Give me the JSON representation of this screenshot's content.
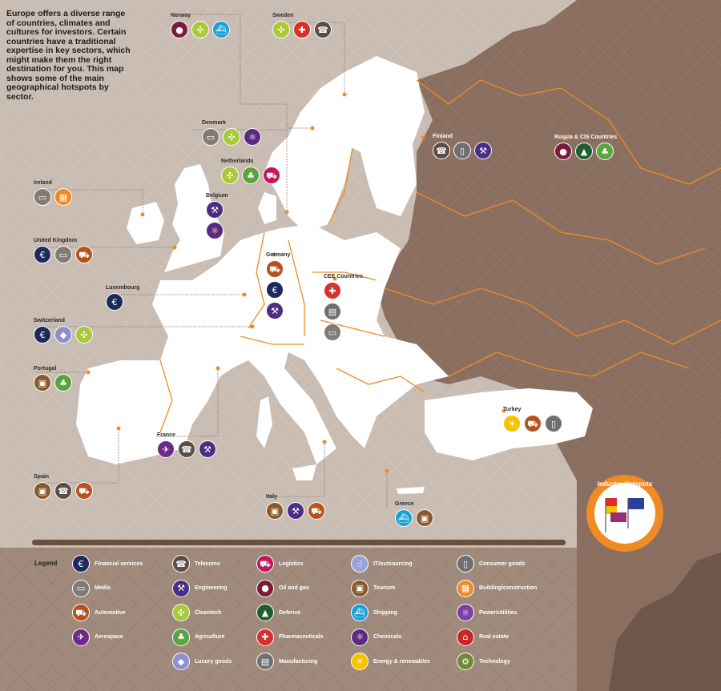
{
  "intro_text": "Europe offers a diverse range of countries, climates and cultures for investors. Certain countries have a traditional expertise in key sectors, which might make them the right destination for you. This map shows some of the main geographical hotspots by sector.",
  "badge": {
    "title": "Industry Hotspots"
  },
  "colors": {
    "background": "#c9bcb2",
    "russia": "#8a6f60",
    "land": "#ffffff",
    "borders": "#f08a24",
    "inset": "#8a6f60"
  },
  "legend": {
    "title": "Legend",
    "items": [
      {
        "key": "financial",
        "label": "Financial services"
      },
      {
        "key": "media",
        "label": "Media"
      },
      {
        "key": "automotive",
        "label": "Automotive"
      },
      {
        "key": "aerospace",
        "label": "Aerospace"
      },
      {
        "key": "telecoms",
        "label": "Telecoms"
      },
      {
        "key": "engineering",
        "label": "Engineering"
      },
      {
        "key": "cleantech",
        "label": "Cleantech"
      },
      {
        "key": "agriculture",
        "label": "Agriculture"
      },
      {
        "key": "luxury",
        "label": "Luxury goods"
      },
      {
        "key": "logistics",
        "label": "Logistics"
      },
      {
        "key": "oilgas",
        "label": "Oil and gas"
      },
      {
        "key": "defence",
        "label": "Defence"
      },
      {
        "key": "pharma",
        "label": "Pharmaceuticals"
      },
      {
        "key": "manufacturing",
        "label": "Manufacturing"
      },
      {
        "key": "it",
        "label": "IT/outsourcing"
      },
      {
        "key": "tourism",
        "label": "Tourism"
      },
      {
        "key": "shipping",
        "label": "Shipping"
      },
      {
        "key": "chemicals",
        "label": "Chemicals"
      },
      {
        "key": "energy",
        "label": "Energy & renewables"
      },
      {
        "key": "consumer",
        "label": "Consumer goods"
      },
      {
        "key": "building",
        "label": "Building/construction"
      },
      {
        "key": "power",
        "label": "Power/utilities"
      },
      {
        "key": "realestate",
        "label": "Real estate"
      },
      {
        "key": "technology",
        "label": "Technology"
      }
    ]
  },
  "sectors": {
    "financial": {
      "color": "#1f2a5c",
      "glyph": "€",
      "icon": "euro-icon"
    },
    "media": {
      "color": "#827b75",
      "glyph": "▭",
      "icon": "monitor-icon"
    },
    "automotive": {
      "color": "#b5531f",
      "glyph": "⛟",
      "icon": "car-icon"
    },
    "aerospace": {
      "color": "#6b2a87",
      "glyph": "✈",
      "icon": "plane-icon"
    },
    "telecoms": {
      "color": "#5b4e47",
      "glyph": "☎",
      "icon": "phone-icon"
    },
    "engineering": {
      "color": "#4b2e83",
      "glyph": "⚒",
      "icon": "wrench-icon"
    },
    "cleantech": {
      "color": "#a8c93a",
      "glyph": "✣",
      "icon": "wind-turbine-icon"
    },
    "agriculture": {
      "color": "#5aa33f",
      "glyph": "♣",
      "icon": "sprout-icon"
    },
    "luxury": {
      "color": "#8d8fd1",
      "glyph": "◆",
      "icon": "diamond-icon"
    },
    "logistics": {
      "color": "#c2185b",
      "glyph": "⛟",
      "icon": "truck-icon"
    },
    "oilgas": {
      "color": "#7b1b3a",
      "glyph": "●",
      "icon": "oil-drop-icon"
    },
    "defence": {
      "color": "#1f5f2f",
      "glyph": "▲",
      "icon": "rocket-icon"
    },
    "pharma": {
      "color": "#d6322b",
      "glyph": "✚",
      "icon": "cross-icon"
    },
    "manufacturing": {
      "color": "#6f6f73",
      "glyph": "▤",
      "icon": "factory-icon"
    },
    "it": {
      "color": "#9aa3d6",
      "glyph": "☝",
      "icon": "mouse-icon"
    },
    "tourism": {
      "color": "#8a5a2e",
      "glyph": "▣",
      "icon": "suitcase-icon"
    },
    "shipping": {
      "color": "#1aa0d6",
      "glyph": "⛴",
      "icon": "ship-icon"
    },
    "chemicals": {
      "color": "#5b2a7f",
      "glyph": "⚛",
      "icon": "atom-icon"
    },
    "energy": {
      "color": "#f5c400",
      "glyph": "☀",
      "icon": "sun-icon"
    },
    "consumer": {
      "color": "#6f6f73",
      "glyph": "▯",
      "icon": "phone-device-icon"
    },
    "building": {
      "color": "#f08a24",
      "glyph": "▦",
      "icon": "brick-icon"
    },
    "power": {
      "color": "#7d3fa1",
      "glyph": "☼",
      "icon": "bulb-icon"
    },
    "realestate": {
      "color": "#c62828",
      "glyph": "⌂",
      "icon": "sale-sign-icon"
    },
    "technology": {
      "color": "#6d8a3a",
      "glyph": "⚙",
      "icon": "gears-icon"
    }
  },
  "countries": [
    {
      "id": "norway",
      "name": "Norway",
      "sectors": [
        "oilgas",
        "cleantech",
        "shipping"
      ]
    },
    {
      "id": "sweden",
      "name": "Sweden",
      "sectors": [
        "cleantech",
        "pharma",
        "telecoms"
      ]
    },
    {
      "id": "denmark",
      "name": "Denmark",
      "sectors": [
        "media",
        "cleantech",
        "chemicals"
      ]
    },
    {
      "id": "netherlands",
      "name": "Netherlands",
      "sectors": [
        "cleantech",
        "agriculture",
        "logistics"
      ]
    },
    {
      "id": "belgium",
      "name": "Belgium",
      "sectors": [
        "engineering",
        "chemicals"
      ]
    },
    {
      "id": "ireland",
      "name": "Ireland",
      "sectors": [
        "media",
        "building"
      ]
    },
    {
      "id": "united-kingdom",
      "name": "United Kingdom",
      "sectors": [
        "financial",
        "media",
        "automotive"
      ]
    },
    {
      "id": "luxembourg",
      "name": "Luxembourg",
      "sectors": [
        "financial"
      ]
    },
    {
      "id": "switzerland",
      "name": "Switzerland",
      "sectors": [
        "financial",
        "luxury",
        "cleantech"
      ]
    },
    {
      "id": "portugal",
      "name": "Portugal",
      "sectors": [
        "tourism",
        "agriculture"
      ]
    },
    {
      "id": "spain",
      "name": "Spain",
      "sectors": [
        "tourism",
        "telecoms",
        "automotive"
      ]
    },
    {
      "id": "france",
      "name": "France",
      "sectors": [
        "aerospace",
        "telecoms",
        "engineering"
      ]
    },
    {
      "id": "germany",
      "name": "Germany",
      "sectors": [
        "automotive",
        "financial",
        "engineering"
      ]
    },
    {
      "id": "cee-countries",
      "name": "CEE Countries",
      "sectors": [
        "pharma",
        "manufacturing",
        "media"
      ]
    },
    {
      "id": "italy",
      "name": "Italy",
      "sectors": [
        "tourism",
        "engineering",
        "automotive"
      ]
    },
    {
      "id": "greece",
      "name": "Greece",
      "sectors": [
        "shipping",
        "tourism"
      ]
    },
    {
      "id": "finland",
      "name": "Finland",
      "sectors": [
        "telecoms",
        "consumer",
        "engineering"
      ]
    },
    {
      "id": "russia-cis",
      "name": "Russia & CIS Countries",
      "sectors": [
        "oilgas",
        "defence",
        "agriculture"
      ]
    },
    {
      "id": "turkey",
      "name": "Turkey",
      "sectors": [
        "energy",
        "automotive",
        "consumer"
      ]
    }
  ]
}
